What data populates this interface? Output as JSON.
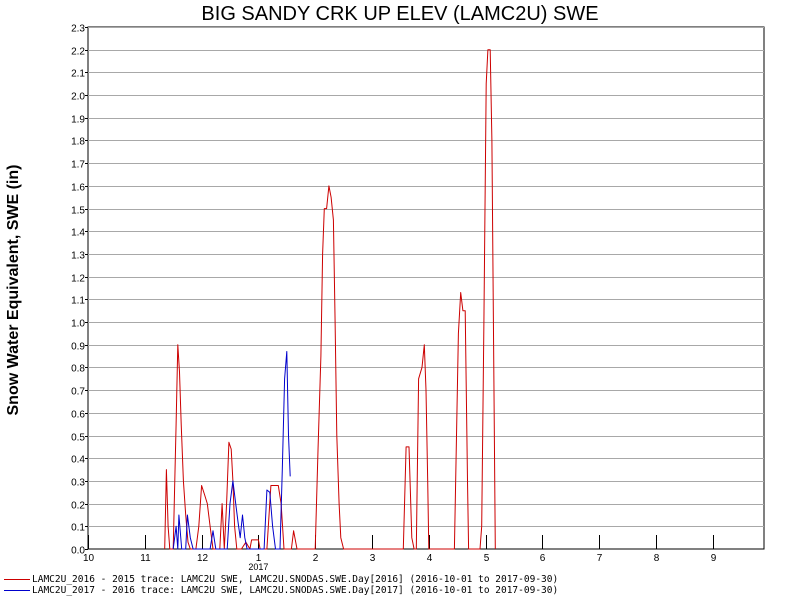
{
  "chart_data": {
    "type": "line",
    "title": "BIG SANDY CRK UP ELEV (LAMC2U) SWE",
    "ylabel": "Snow Water Equivalent, SWE (in)",
    "xlabel": "",
    "ylim": [
      0,
      2.3
    ],
    "yticks": [
      "0.0",
      "0.1",
      "0.2",
      "0.3",
      "0.4",
      "0.5",
      "0.6",
      "0.7",
      "0.8",
      "0.9",
      "1.0",
      "1.1",
      "1.2",
      "1.3",
      "1.4",
      "1.5",
      "1.6",
      "1.7",
      "1.8",
      "1.9",
      "2.0",
      "2.1",
      "2.2",
      "2.3"
    ],
    "xlim": [
      10,
      21.9
    ],
    "xtick_labels": [
      "10",
      "11",
      "12",
      "1",
      "2",
      "3",
      "4",
      "5",
      "6",
      "7",
      "8",
      "9"
    ],
    "year_label": "2017",
    "grid": true,
    "legend_position": "bottom-left",
    "series": [
      {
        "name": "LAMC2U_2016 - 2015 trace: LAMC2U SWE, LAMC2U.SNODAS.SWE.Day[2016] (2016-10-01 to 2017-09-30)",
        "color": "#cc0000",
        "points": [
          [
            11.35,
            0.0
          ],
          [
            11.38,
            0.35
          ],
          [
            11.41,
            0.1
          ],
          [
            11.44,
            0.0
          ],
          [
            11.5,
            0.0
          ],
          [
            11.55,
            0.55
          ],
          [
            11.58,
            0.9
          ],
          [
            11.61,
            0.78
          ],
          [
            11.64,
            0.55
          ],
          [
            11.68,
            0.3
          ],
          [
            11.72,
            0.15
          ],
          [
            11.76,
            0.03
          ],
          [
            11.8,
            0.0
          ],
          [
            11.9,
            0.0
          ],
          [
            11.95,
            0.1
          ],
          [
            12.0,
            0.28
          ],
          [
            12.05,
            0.24
          ],
          [
            12.1,
            0.2
          ],
          [
            12.15,
            0.1
          ],
          [
            12.2,
            0.0
          ],
          [
            12.32,
            0.0
          ],
          [
            12.36,
            0.2
          ],
          [
            12.4,
            0.0
          ],
          [
            12.44,
            0.2
          ],
          [
            12.48,
            0.47
          ],
          [
            12.52,
            0.44
          ],
          [
            12.55,
            0.3
          ],
          [
            12.58,
            0.1
          ],
          [
            12.62,
            0.0
          ],
          [
            12.7,
            0.0
          ],
          [
            12.78,
            0.03
          ],
          [
            12.85,
            0.0
          ],
          [
            12.88,
            0.04
          ],
          [
            13.0,
            0.04
          ],
          [
            13.03,
            0.0
          ],
          [
            13.15,
            0.0
          ],
          [
            13.22,
            0.28
          ],
          [
            13.35,
            0.28
          ],
          [
            13.4,
            0.2
          ],
          [
            13.45,
            0.0
          ],
          [
            13.58,
            0.0
          ],
          [
            13.62,
            0.08
          ],
          [
            13.68,
            0.0
          ],
          [
            14.0,
            0.0
          ],
          [
            14.05,
            0.45
          ],
          [
            14.1,
            0.85
          ],
          [
            14.13,
            1.3
          ],
          [
            14.16,
            1.5
          ],
          [
            14.2,
            1.5
          ],
          [
            14.24,
            1.6
          ],
          [
            14.28,
            1.55
          ],
          [
            14.32,
            1.45
          ],
          [
            14.35,
            1.0
          ],
          [
            14.38,
            0.5
          ],
          [
            14.42,
            0.2
          ],
          [
            14.45,
            0.05
          ],
          [
            14.5,
            0.0
          ],
          [
            14.9,
            0.0
          ],
          [
            15.55,
            0.0
          ],
          [
            15.6,
            0.45
          ],
          [
            15.65,
            0.45
          ],
          [
            15.7,
            0.05
          ],
          [
            15.74,
            0.0
          ],
          [
            15.78,
            0.0
          ],
          [
            15.82,
            0.75
          ],
          [
            15.88,
            0.8
          ],
          [
            15.92,
            0.9
          ],
          [
            15.95,
            0.7
          ],
          [
            15.98,
            0.3
          ],
          [
            16.0,
            0.0
          ],
          [
            16.45,
            0.0
          ],
          [
            16.52,
            0.95
          ],
          [
            16.56,
            1.13
          ],
          [
            16.6,
            1.05
          ],
          [
            16.64,
            1.05
          ],
          [
            16.68,
            0.3
          ],
          [
            16.7,
            0.0
          ],
          [
            16.9,
            0.0
          ],
          [
            16.93,
            0.1
          ],
          [
            16.97,
            1.0
          ],
          [
            17.01,
            2.05
          ],
          [
            17.04,
            2.2
          ],
          [
            17.08,
            2.2
          ],
          [
            17.11,
            1.8
          ],
          [
            17.14,
            0.9
          ],
          [
            17.17,
            0.0
          ]
        ]
      },
      {
        "name": "LAMC2U_2017 - 2016 trace: LAMC2U SWE, LAMC2U.SNODAS.SWE.Day[2017] (2016-10-01 to 2017-09-30)",
        "color": "#0000cc",
        "points": [
          [
            11.5,
            0.0
          ],
          [
            11.55,
            0.1
          ],
          [
            11.58,
            0.0
          ],
          [
            11.6,
            0.15
          ],
          [
            11.65,
            0.0
          ],
          [
            11.72,
            0.0
          ],
          [
            11.75,
            0.15
          ],
          [
            11.8,
            0.05
          ],
          [
            11.85,
            0.0
          ],
          [
            12.15,
            0.0
          ],
          [
            12.2,
            0.08
          ],
          [
            12.25,
            0.0
          ],
          [
            12.45,
            0.0
          ],
          [
            12.5,
            0.2
          ],
          [
            12.55,
            0.3
          ],
          [
            12.6,
            0.2
          ],
          [
            12.64,
            0.12
          ],
          [
            12.68,
            0.05
          ],
          [
            12.72,
            0.15
          ],
          [
            12.76,
            0.05
          ],
          [
            12.8,
            0.0
          ],
          [
            13.1,
            0.0
          ],
          [
            13.15,
            0.26
          ],
          [
            13.2,
            0.25
          ],
          [
            13.25,
            0.1
          ],
          [
            13.3,
            0.0
          ],
          [
            13.38,
            0.0
          ],
          [
            13.42,
            0.35
          ],
          [
            13.46,
            0.75
          ],
          [
            13.5,
            0.87
          ],
          [
            13.53,
            0.5
          ],
          [
            13.56,
            0.32
          ]
        ]
      }
    ]
  }
}
